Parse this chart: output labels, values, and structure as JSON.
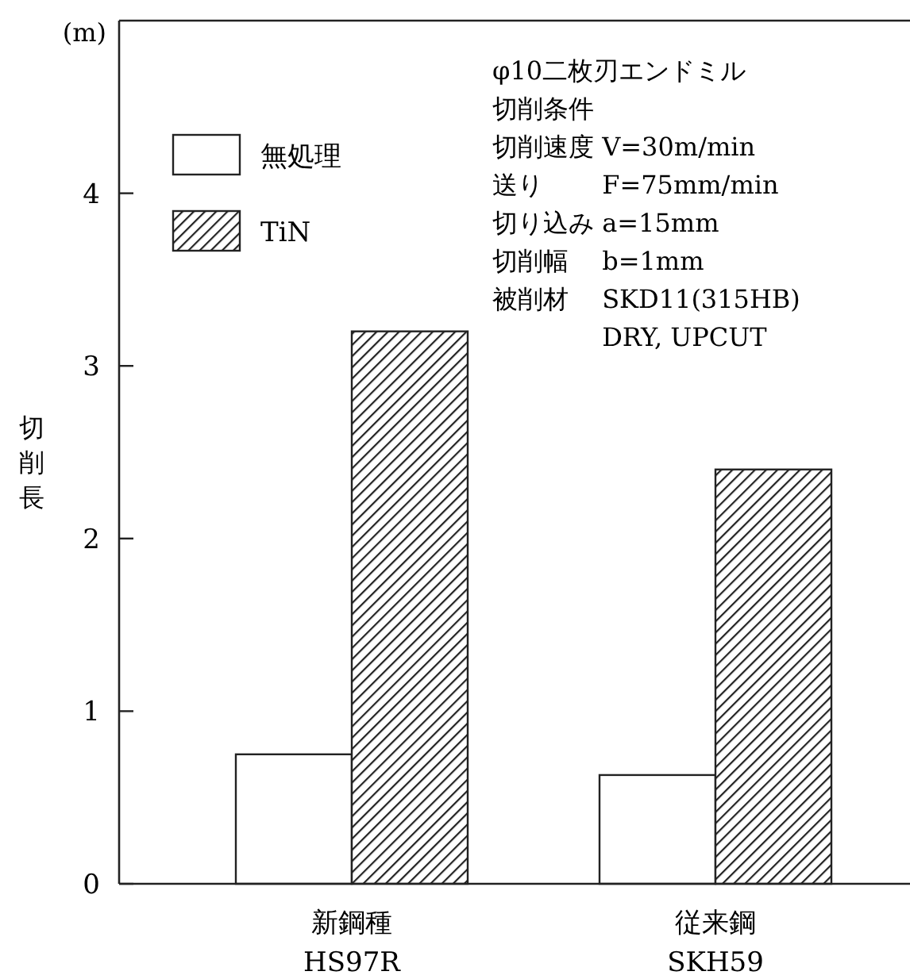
{
  "chart_data": {
    "type": "bar",
    "ylabel": "切削長",
    "categories": [
      "新鋼種\nHS97R",
      "従来鋼\nSKH59"
    ],
    "series": [
      {
        "name": "無処理",
        "color": "#ffffff",
        "values": [
          0.75,
          0.63
        ]
      },
      {
        "name": "TiN",
        "color": "#222222",
        "values": [
          3.2,
          2.4
        ]
      }
    ],
    "ylim": [
      0,
      5
    ],
    "yticks": [
      0,
      1,
      2,
      3,
      4
    ],
    "legend": "top left",
    "grid": false,
    "annotations": [
      "(m)",
      "φ10二枚刃エンドミル",
      "切削条件",
      "切削速度 V=30m/min",
      "送り　　 F=75mm/min",
      "切り込み a=15mm",
      "切削幅　 b=1mm",
      "被削材　 SKD11(315HB)",
      "　　　　 DRY, UPCUT"
    ]
  }
}
